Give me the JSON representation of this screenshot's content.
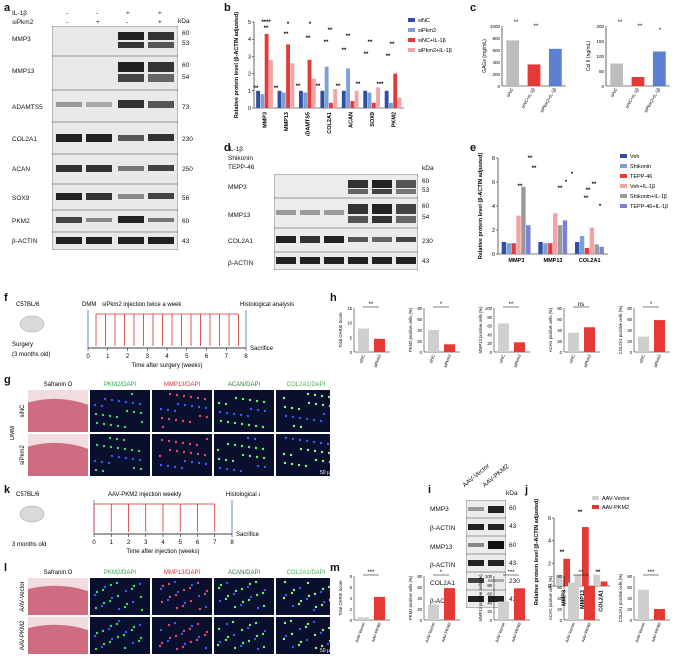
{
  "panels": {
    "a": "a",
    "b": "b",
    "c": "c",
    "d": "d",
    "e": "e",
    "f": "f",
    "g": "g",
    "h": "h",
    "i": "i",
    "j": "j",
    "k": "k",
    "l": "l",
    "m": "m"
  },
  "blot_a": {
    "conditions": [
      "IL-1β",
      "siPkm2"
    ],
    "signs": [
      [
        "-",
        "-",
        "+",
        "+"
      ],
      [
        "-",
        "+",
        "-",
        "+"
      ]
    ],
    "kda": "kDa",
    "rows": [
      {
        "name": "MMP3",
        "mw": [
          "60",
          "53"
        ]
      },
      {
        "name": "MMP13",
        "mw": [
          "60",
          "54"
        ]
      },
      {
        "name": "ADAMTS5",
        "mw": [
          "73"
        ]
      },
      {
        "name": "COL2A1",
        "mw": [
          "230"
        ]
      },
      {
        "name": "ACAN",
        "mw": [
          "250"
        ]
      },
      {
        "name": "SOX9",
        "mw": [
          "56"
        ]
      },
      {
        "name": "PKM2",
        "mw": [
          "60"
        ]
      },
      {
        "name": "β-ACTIN",
        "mw": [
          "43"
        ]
      }
    ]
  },
  "blot_d": {
    "conditions": [
      "IL-1β",
      "Shikonin",
      "TEPP-46"
    ],
    "signs": [
      [
        "-",
        "-",
        "-",
        "+",
        "+",
        "+"
      ],
      [
        "-",
        "+",
        "-",
        "-",
        "+",
        "-"
      ],
      [
        "-",
        "-",
        "+",
        "-",
        "-",
        "+"
      ]
    ],
    "kda": "kDa",
    "rows": [
      {
        "name": "MMP3",
        "mw": [
          "60",
          "53"
        ]
      },
      {
        "name": "MMP13",
        "mw": [
          "60",
          "54"
        ]
      },
      {
        "name": "COL2A1",
        "mw": [
          "230"
        ]
      },
      {
        "name": "β-ACTIN",
        "mw": [
          "43"
        ]
      }
    ]
  },
  "blot_i": {
    "lanes": [
      "AAV-Vector",
      "AAV-PKM2"
    ],
    "kda": "kDa",
    "rows": [
      {
        "name": "MMP3",
        "mw": [
          "60"
        ]
      },
      {
        "name": "β-ACTIN",
        "mw": [
          "43"
        ]
      },
      {
        "name": "MMP13",
        "mw": [
          "60"
        ]
      },
      {
        "name": "β-ACTIN",
        "mw": [
          "43"
        ]
      },
      {
        "name": "COL2A1",
        "mw": [
          "230"
        ]
      },
      {
        "name": "β-ACTIN",
        "mw": [
          "43"
        ]
      }
    ]
  },
  "timeline_f": {
    "mouse": "C57BL/6",
    "age": "(3 months old)",
    "surgery": "Surgery",
    "dmm": "DMM",
    "injection": "siPkm2 injection twice a week",
    "analysis": "Histological analysis",
    "sacrifice": "Sacrifice",
    "axis": "Time after surgery (weeks)",
    "ticks": [
      "0",
      "1",
      "2",
      "3",
      "4",
      "5",
      "6",
      "7",
      "8"
    ]
  },
  "timeline_k": {
    "mouse": "C57BL/6",
    "age": "3 months old",
    "injection": "AAV-PKM2 injection weekly",
    "analysis": "Histological analysis",
    "sacrifice": "Sacrifice",
    "axis": "Time after injection (weeks)",
    "ticks": [
      "0",
      "1",
      "2",
      "3",
      "4",
      "5",
      "6",
      "7",
      "8"
    ]
  },
  "histo_g": {
    "cols": [
      "Safranin O",
      "PKM2/DAPI",
      "MMP13/DAPI",
      "ACAN/DAPI",
      "COL2A1/DAPI"
    ],
    "rows": [
      "siNC",
      "siPkm2"
    ],
    "group": "DMM",
    "scale": "50 μm"
  },
  "histo_l": {
    "cols": [
      "Safranin O",
      "PKM2/DAPI",
      "MMP13/DAPI",
      "ACAN/DAPI",
      "COL2A1/DAPI"
    ],
    "rows": [
      "AAV-Vector",
      "AAV-PKM2"
    ],
    "scale": "50 μm"
  },
  "colors": {
    "siNC": "#2f4fa3",
    "siPkm2": "#7b9fd6",
    "siNC_IL": "#e23b3b",
    "siPkm2_IL": "#f3a3a3",
    "Veh": "#2f4fa3",
    "Shikonin": "#7b9fd6",
    "TEPP": "#e23b3b",
    "VehIL": "#f3a3a3",
    "ShikIL": "#9a9a9a",
    "TeppIL": "#7c7fd9",
    "gray": "#cfcfcf",
    "red": "#e53935",
    "safranin": "#c8506a",
    "fluor_bg": "#0a0f2e"
  },
  "chart_data": [
    {
      "id": "b",
      "type": "bar",
      "ylabel": "Relative protein level (β-ACTIN adjusted)",
      "categories": [
        "MMP3",
        "MMP13",
        "ADAMTS5",
        "COL2A1",
        "ACAN",
        "SOX9",
        "PKM2"
      ],
      "ylim": [
        0,
        5
      ],
      "yticks": [
        "0",
        "1",
        "2",
        "3",
        "4",
        "5"
      ],
      "series": [
        {
          "name": "siNC",
          "values": [
            1,
            1,
            1,
            1,
            1,
            1,
            1
          ]
        },
        {
          "name": "siPkm2",
          "values": [
            0.8,
            0.9,
            0.9,
            2.4,
            2.3,
            0.9,
            0.3
          ]
        },
        {
          "name": "siNC+IL-1β",
          "values": [
            4.3,
            3.7,
            2.8,
            0.3,
            0.4,
            0.3,
            2.0
          ]
        },
        {
          "name": "siPkm2+IL-1β",
          "values": [
            2.8,
            2.6,
            1.7,
            1.1,
            1.0,
            1.2,
            0.6
          ]
        }
      ],
      "annotations": [
        "****",
        "**",
        "**",
        "*",
        "**",
        "*",
        "**",
        "**",
        "**",
        "**",
        "**",
        "**",
        "**",
        "**",
        "**",
        "**",
        "**",
        "**",
        "**",
        "**",
        "***"
      ]
    },
    {
      "id": "c1",
      "type": "bar",
      "ylabel": "GAGs (mg/mL)",
      "categories": [
        "siNC",
        "siNC+IL-1β",
        "siPkm2+IL-1β"
      ],
      "ylim": [
        0,
        1000
      ],
      "yticks": [
        "0",
        "200",
        "400",
        "600",
        "800",
        "1000"
      ],
      "values": [
        760,
        360,
        620
      ],
      "annotations": [
        "**",
        "**"
      ]
    },
    {
      "id": "c2",
      "type": "bar",
      "ylabel": "Col II (ng/mL)",
      "categories": [
        "siNC",
        "siNC+IL-1β",
        "siPkm2+IL-1β"
      ],
      "ylim": [
        0,
        200
      ],
      "yticks": [
        "0",
        "50",
        "100",
        "150",
        "200"
      ],
      "values": [
        75,
        30,
        115
      ],
      "annotations": [
        "**",
        "**",
        "*"
      ]
    },
    {
      "id": "e",
      "type": "bar",
      "ylabel": "Relative protein level (β-ACTIN adjusted)",
      "categories": [
        "MMP3",
        "MMP13",
        "COL2A1"
      ],
      "ylim": [
        0,
        8
      ],
      "yticks": [
        "0",
        "2",
        "4",
        "6",
        "8"
      ],
      "series": [
        {
          "name": "Veh",
          "values": [
            1,
            1,
            1
          ]
        },
        {
          "name": "Shikonin",
          "values": [
            0.9,
            0.9,
            1.5
          ]
        },
        {
          "name": "TEPP-46",
          "values": [
            0.9,
            0.9,
            0.5
          ]
        },
        {
          "name": "Veh+IL-1β",
          "values": [
            3.2,
            3.4,
            2.2
          ]
        },
        {
          "name": "Shikonin+IL-1β",
          "values": [
            5.6,
            2.4,
            0.8
          ]
        },
        {
          "name": "TEPP-46+IL-1β",
          "values": [
            2.4,
            2.8,
            0.6
          ]
        }
      ],
      "annotations": [
        "**",
        "**",
        "**",
        "**",
        "*",
        "*",
        "**",
        "**",
        "**",
        "*"
      ]
    },
    {
      "id": "h",
      "type": "bar",
      "panels": [
        {
          "ylabel": "Total OARSI Score",
          "ylim": [
            0,
            15
          ],
          "yticks": [
            "0",
            "5",
            "10",
            "15"
          ],
          "categories": [
            "siNC",
            "siPkm2"
          ],
          "values": [
            8,
            4.5
          ],
          "sig": "**"
        },
        {
          "ylabel": "PKM2 positive cells (%)",
          "ylim": [
            0,
            80
          ],
          "yticks": [
            "0",
            "20",
            "40",
            "60",
            "80"
          ],
          "categories": [
            "siNC",
            "siPkm2"
          ],
          "values": [
            40,
            14
          ],
          "sig": "*"
        },
        {
          "ylabel": "MMP13 positive cells (%)",
          "ylim": [
            0,
            100
          ],
          "yticks": [
            "0",
            "20",
            "40",
            "60",
            "80",
            "100"
          ],
          "categories": [
            "siNC",
            "siPkm2"
          ],
          "values": [
            65,
            22
          ],
          "sig": "**"
        },
        {
          "ylabel": "ACAN positive cells (%)",
          "ylim": [
            0,
            80
          ],
          "yticks": [
            "0",
            "20",
            "40",
            "60",
            "80"
          ],
          "categories": [
            "siNC",
            "siPkm2"
          ],
          "values": [
            35,
            45
          ],
          "sig": "ns"
        },
        {
          "ylabel": "COL2A1 positive cells (%)",
          "ylim": [
            0,
            80
          ],
          "yticks": [
            "0",
            "20",
            "40",
            "60",
            "80"
          ],
          "categories": [
            "siNC",
            "siPkm2"
          ],
          "values": [
            28,
            58
          ],
          "sig": "*"
        }
      ]
    },
    {
      "id": "j",
      "type": "bar",
      "ylabel": "Relative protein level (β-ACTIN adjusted)",
      "categories": [
        "MMP3",
        "MMP13",
        "COL2A1"
      ],
      "ylim": [
        0,
        6
      ],
      "yticks": [
        "0",
        "2",
        "4",
        "6"
      ],
      "series": [
        {
          "name": "AAV-Vector",
          "values": [
            1,
            1,
            1
          ]
        },
        {
          "name": "AAV-PKM2",
          "values": [
            2.4,
            5.2,
            0.4
          ]
        }
      ],
      "annotations": [
        "**",
        "**",
        "**"
      ]
    },
    {
      "id": "m",
      "type": "bar",
      "panels": [
        {
          "ylabel": "Total OARSI Score",
          "ylim": [
            0,
            8
          ],
          "yticks": [
            "0",
            "2",
            "4",
            "6",
            "8"
          ],
          "categories": [
            "AAV-Vector",
            "AAV-PKM2"
          ],
          "values": [
            0.5,
            4.2
          ],
          "sig": "***"
        },
        {
          "ylabel": "PKM2 positive cells (%)",
          "ylim": [
            0,
            80
          ],
          "yticks": [
            "0",
            "20",
            "40",
            "60",
            "80"
          ],
          "categories": [
            "AAV-Vector",
            "AAV-PKM2"
          ],
          "values": [
            28,
            58
          ],
          "sig": "*"
        },
        {
          "ylabel": "MMP13 positive cells (%)",
          "ylim": [
            0,
            100
          ],
          "yticks": [
            "0",
            "20",
            "40",
            "60",
            "80",
            "100"
          ],
          "categories": [
            "AAV-Vector",
            "AAV-PKM2"
          ],
          "values": [
            42,
            72
          ],
          "sig": "***"
        },
        {
          "ylabel": "ACAN positive cells (%)",
          "ylim": [
            0,
            80
          ],
          "yticks": [
            "0",
            "20",
            "40",
            "60",
            "80"
          ],
          "categories": [
            "AAV-Vector",
            "AAV-PKM2"
          ],
          "values": [
            68,
            62
          ],
          "sig": "**"
        },
        {
          "ylabel": "COL2A1 positive cells (%)",
          "ylim": [
            0,
            80
          ],
          "yticks": [
            "0",
            "20",
            "40",
            "60",
            "80"
          ],
          "categories": [
            "AAV-Vector",
            "AAV-PKM2"
          ],
          "values": [
            55,
            20
          ],
          "sig": "***"
        }
      ]
    }
  ]
}
